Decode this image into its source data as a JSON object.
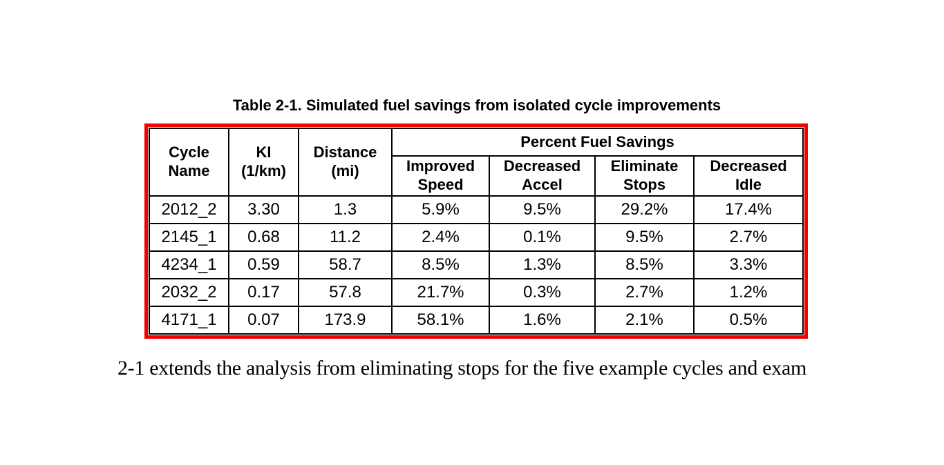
{
  "document": {
    "table_title": "Table 2-1. Simulated fuel savings from isolated cycle improvements",
    "body_text": "2-1 extends the analysis from eliminating stops for the five example cycles and exam"
  },
  "table": {
    "accent_border_color": "#f40000",
    "grid_color": "#000000",
    "headers": {
      "cycle_name": "Cycle\nName",
      "ki": "KI\n(1/km)",
      "distance": "Distance\n(mi)",
      "group": "Percent Fuel Savings",
      "improved_speed": "Improved\nSpeed",
      "decreased_accel": "Decreased\nAccel",
      "eliminate_stops": "Eliminate\nStops",
      "decreased_idle": "Decreased\nIdle"
    },
    "rows": [
      {
        "cycle_name": "2012_2",
        "ki": "3.30",
        "distance": "1.3",
        "improved_speed": "5.9%",
        "decreased_accel": "9.5%",
        "eliminate_stops": "29.2%",
        "decreased_idle": "17.4%"
      },
      {
        "cycle_name": "2145_1",
        "ki": "0.68",
        "distance": "11.2",
        "improved_speed": "2.4%",
        "decreased_accel": "0.1%",
        "eliminate_stops": "9.5%",
        "decreased_idle": "2.7%"
      },
      {
        "cycle_name": "4234_1",
        "ki": "0.59",
        "distance": "58.7",
        "improved_speed": "8.5%",
        "decreased_accel": "1.3%",
        "eliminate_stops": "8.5%",
        "decreased_idle": "3.3%"
      },
      {
        "cycle_name": "2032_2",
        "ki": "0.17",
        "distance": "57.8",
        "improved_speed": "21.7%",
        "decreased_accel": "0.3%",
        "eliminate_stops": "2.7%",
        "decreased_idle": "1.2%"
      },
      {
        "cycle_name": "4171_1",
        "ki": "0.07",
        "distance": "173.9",
        "improved_speed": "58.1%",
        "decreased_accel": "1.6%",
        "eliminate_stops": "2.1%",
        "decreased_idle": "0.5%"
      }
    ]
  }
}
